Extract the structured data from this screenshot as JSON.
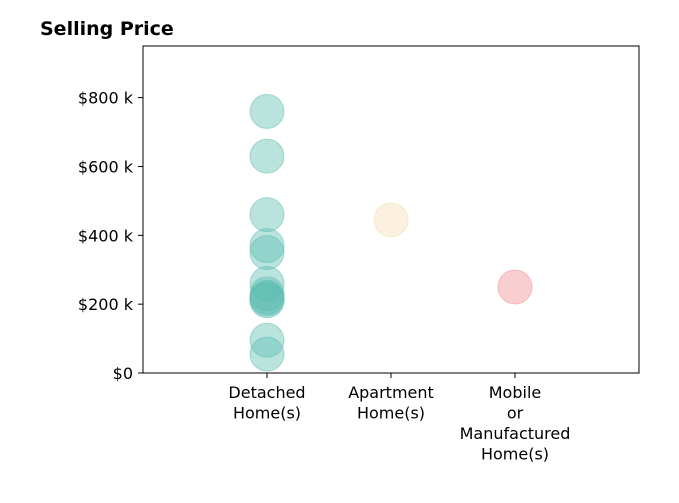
{
  "chart_data": {
    "type": "scatter",
    "title": "Selling Price",
    "xlabel": "",
    "ylabel": "",
    "categories": [
      [
        "Detached",
        "Home(s)"
      ],
      [
        "Apartment",
        "Home(s)"
      ],
      [
        "Mobile",
        "or",
        "Manufactured",
        "Home(s)"
      ]
    ],
    "ylim": [
      0,
      950000
    ],
    "yticks": [
      0,
      200000,
      400000,
      600000,
      800000
    ],
    "ytick_labels": [
      "$0",
      "$200 k",
      "$400 k",
      "$600 k",
      "$800 k"
    ],
    "grid": false,
    "series": [
      {
        "category_index": 0,
        "color": "#5bbcb0",
        "values": [
          760000,
          630000,
          460000,
          370000,
          350000,
          260000,
          230000,
          220000,
          215000,
          210000,
          95000,
          55000
        ]
      },
      {
        "category_index": 1,
        "color": "#f5deb0",
        "values": [
          445000
        ]
      },
      {
        "category_index": 2,
        "color": "#f08a91",
        "values": [
          250000
        ]
      }
    ]
  }
}
